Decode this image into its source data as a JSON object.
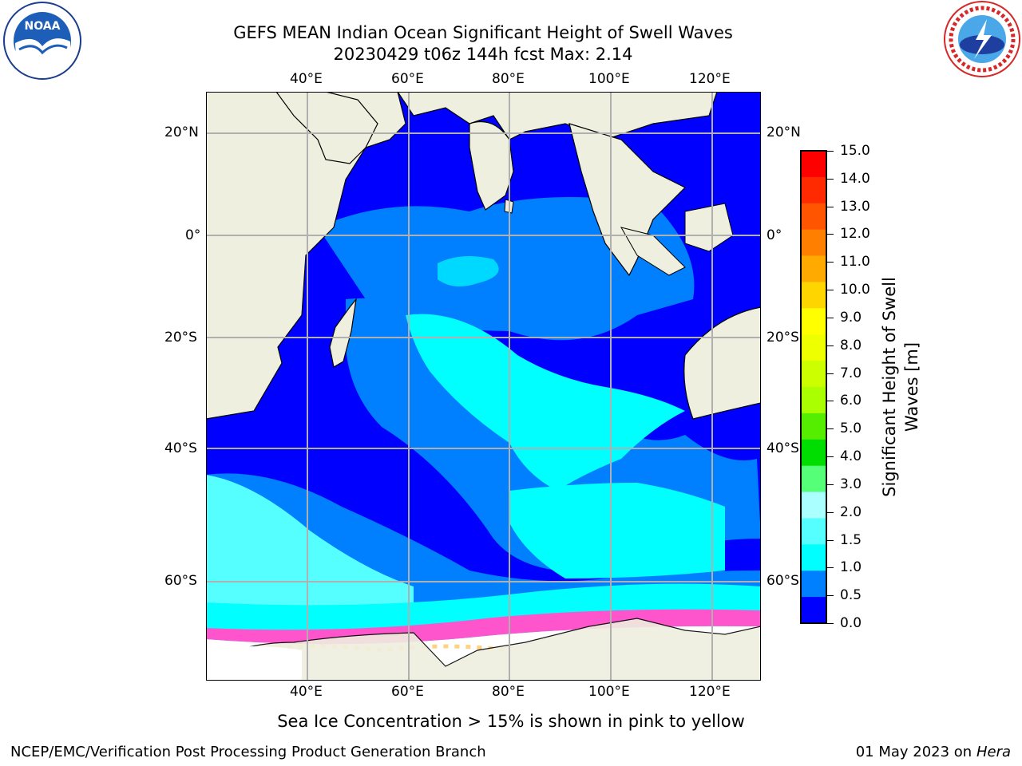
{
  "header": {
    "title_line1": "GEFS MEAN Indian Ocean Significant Height of Swell Waves",
    "title_line2": "20230429 t06z 144h fcst   Max: 2.14"
  },
  "logos": {
    "left": {
      "name": "NOAA",
      "ring_text": "NATIONAL OCEANIC AND ATMOSPHERIC ADMINISTRATION",
      "ring_bottom": "U.S. DEPARTMENT OF COMMERCE"
    },
    "right": {
      "name": "NATIONAL WEATHER SERVICE"
    }
  },
  "map": {
    "lon_labels": [
      "40°E",
      "60°E",
      "80°E",
      "100°E",
      "120°E"
    ],
    "lat_labels": [
      "20°N",
      "0°",
      "20°S",
      "40°S",
      "60°S"
    ],
    "lon_range": [
      20,
      129
    ],
    "lat_range": [
      -73,
      27
    ],
    "grid": true
  },
  "colorbar": {
    "label_line1": "Significant Height of Swell",
    "label_line2": "Waves [m]",
    "ticks": [
      "15.0",
      "14.0",
      "13.0",
      "12.0",
      "11.0",
      "10.0",
      "9.0",
      "8.0",
      "7.0",
      "6.0",
      "5.0",
      "4.0",
      "3.0",
      "2.0",
      "1.5",
      "1.0",
      "0.5",
      "0.0"
    ],
    "colors_top_to_bottom": [
      "#ff0000",
      "#ff2a00",
      "#ff5500",
      "#ff8000",
      "#ffaa00",
      "#ffd500",
      "#ffff00",
      "#eeff00",
      "#ccff00",
      "#aaff00",
      "#55ee00",
      "#00dd00",
      "#55ff77",
      "#aaffff",
      "#55ffff",
      "#00ffff",
      "#0080ff",
      "#0000ff"
    ]
  },
  "caption": "Sea Ice Concentration > 15% is shown in pink to yellow",
  "footer": {
    "left": "NCEP/EMC/Verification Post Processing Product Generation Branch",
    "date": "01 May 2023 on",
    "host": "Hera"
  }
}
